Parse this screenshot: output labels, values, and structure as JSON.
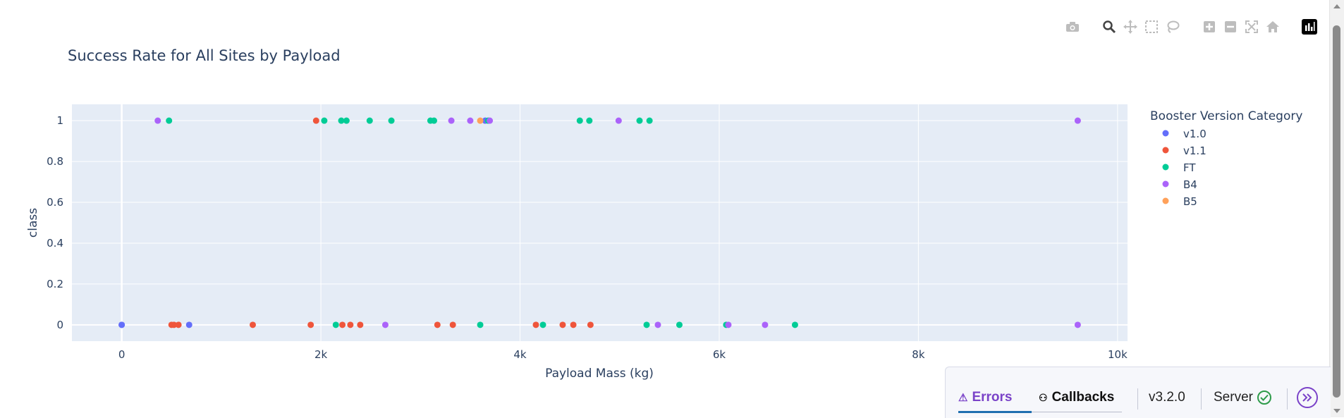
{
  "chart_data": {
    "type": "scatter",
    "title": "Success Rate for All Sites by Payload",
    "xlabel": "Payload Mass (kg)",
    "ylabel": "class",
    "xlim": [
      -500,
      10100
    ],
    "ylim": [
      -0.08,
      1.08
    ],
    "x_ticks": [
      0,
      2000,
      4000,
      6000,
      8000,
      10000
    ],
    "x_tick_labels": [
      "0",
      "2k",
      "4k",
      "6k",
      "8k",
      "10k"
    ],
    "y_ticks": [
      0,
      0.2,
      0.4,
      0.6,
      0.8,
      1
    ],
    "y_tick_labels": [
      "0",
      "0.2",
      "0.4",
      "0.6",
      "0.8",
      "1"
    ],
    "grid": true,
    "legend_title": "Booster Version Category",
    "legend_position": "right",
    "series": [
      {
        "name": "v1.0",
        "color": "#636efa",
        "points": [
          [
            0,
            0
          ],
          [
            0,
            0
          ],
          [
            677,
            0
          ],
          [
            3650,
            1
          ]
        ]
      },
      {
        "name": "v1.1",
        "color": "#ef553b",
        "points": [
          [
            500,
            0
          ],
          [
            525,
            0
          ],
          [
            570,
            0
          ],
          [
            1316,
            0
          ],
          [
            1898,
            0
          ],
          [
            1952,
            1
          ],
          [
            2216,
            0
          ],
          [
            2296,
            0
          ],
          [
            2395,
            0
          ],
          [
            3170,
            0
          ],
          [
            3325,
            0
          ],
          [
            4159,
            0
          ],
          [
            4428,
            0
          ],
          [
            4535,
            0
          ],
          [
            4707,
            0
          ]
        ]
      },
      {
        "name": "FT",
        "color": "#00cc96",
        "points": [
          [
            475,
            1
          ],
          [
            2034,
            1
          ],
          [
            2150,
            0
          ],
          [
            2205,
            1
          ],
          [
            2257,
            1
          ],
          [
            2490,
            1
          ],
          [
            2708,
            1
          ],
          [
            3100,
            1
          ],
          [
            3136,
            1
          ],
          [
            3600,
            0
          ],
          [
            3680,
            1
          ],
          [
            4230,
            0
          ],
          [
            4600,
            1
          ],
          [
            4696,
            1
          ],
          [
            5200,
            1
          ],
          [
            5271,
            0
          ],
          [
            5300,
            1
          ],
          [
            5600,
            0
          ],
          [
            6070,
            0
          ],
          [
            6761,
            0
          ]
        ]
      },
      {
        "name": "B4",
        "color": "#ab63fa",
        "points": [
          [
            362,
            1
          ],
          [
            2647,
            0
          ],
          [
            3310,
            1
          ],
          [
            3500,
            1
          ],
          [
            3696,
            1
          ],
          [
            4990,
            1
          ],
          [
            5384,
            0
          ],
          [
            6092,
            0
          ],
          [
            6460,
            0
          ],
          [
            9600,
            1
          ],
          [
            9600,
            0
          ]
        ]
      },
      {
        "name": "B5",
        "color": "#ffa15a",
        "points": [
          [
            3600,
            1
          ]
        ]
      }
    ]
  },
  "modebar": {
    "icons": [
      "camera-icon",
      "zoom-icon",
      "pan-icon",
      "box-select-icon",
      "lasso-select-icon",
      "zoom-in-icon",
      "zoom-out-icon",
      "autoscale-icon",
      "reset-axes-icon",
      "plotly-logo-icon"
    ]
  },
  "devtools": {
    "errors_label": "Errors",
    "callbacks_label": "Callbacks",
    "version": "v3.2.0",
    "server_label": "Server",
    "accent": "#7a42c8"
  }
}
